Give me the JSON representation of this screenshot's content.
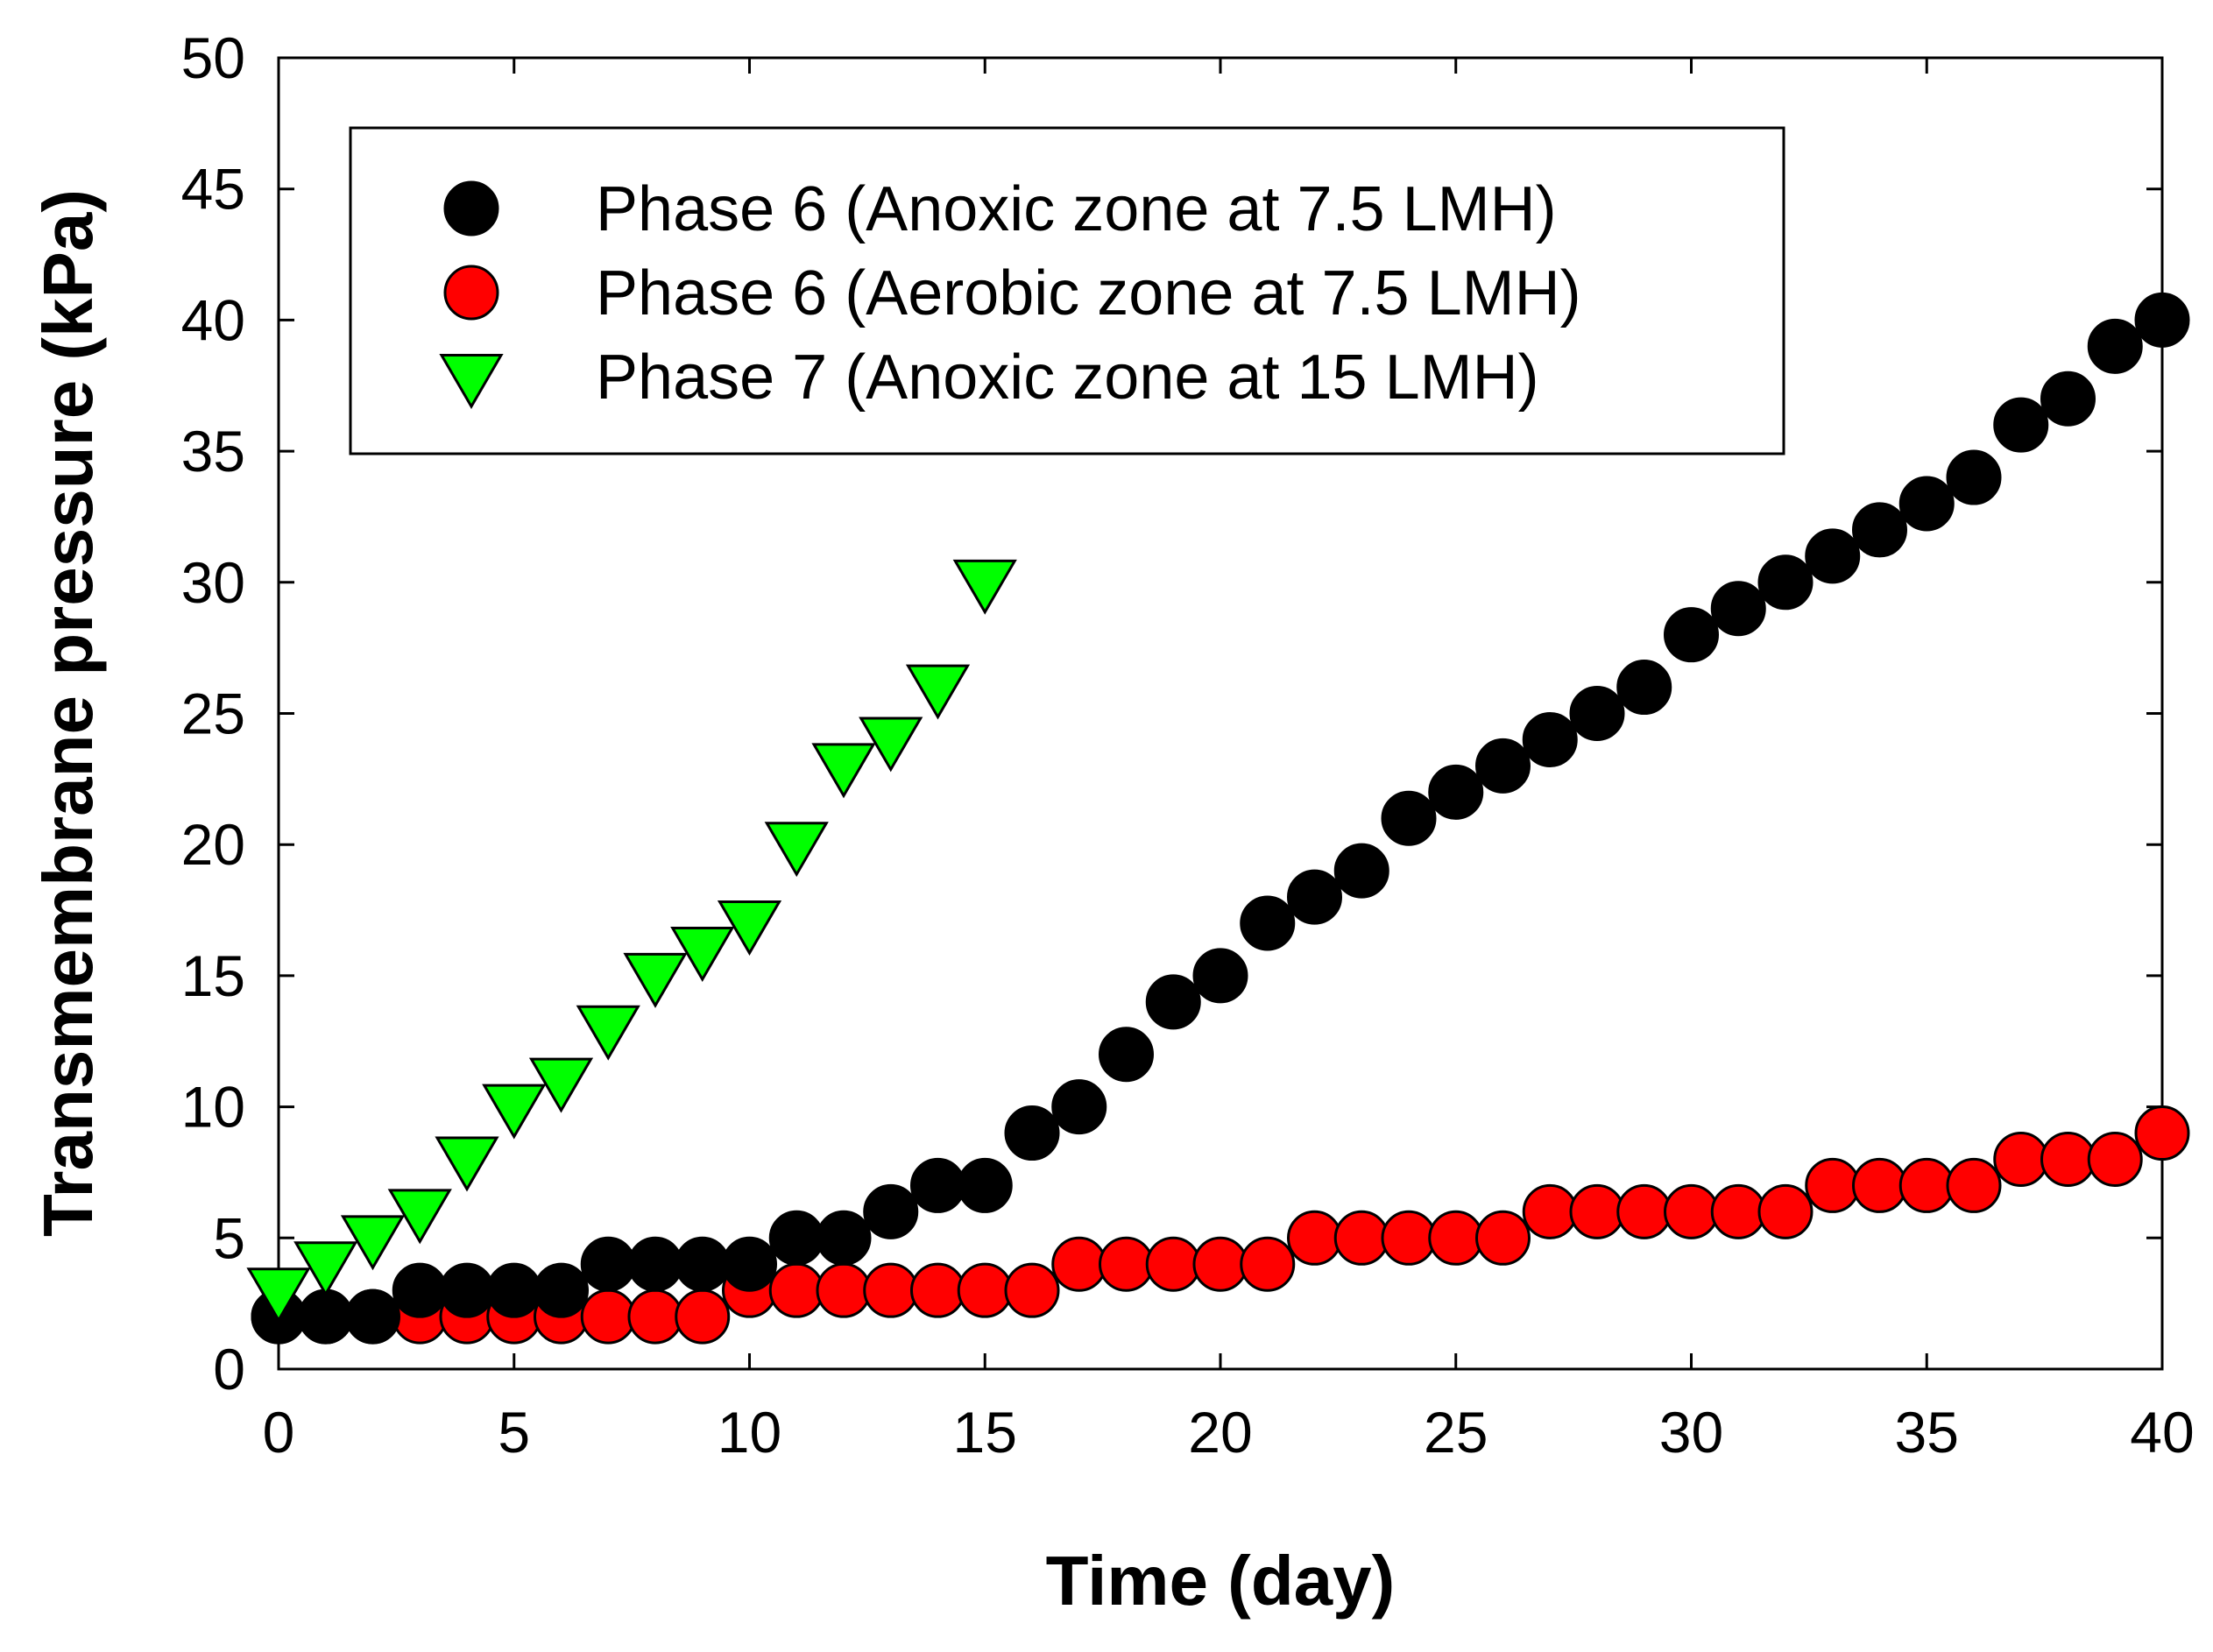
{
  "chart_data": {
    "type": "scatter",
    "title": "",
    "xlabel": "Time (day)",
    "ylabel": "Transmembrane pressure (kPa)",
    "xlim": [
      0,
      40
    ],
    "ylim": [
      0,
      50
    ],
    "xticks": [
      0,
      5,
      10,
      15,
      20,
      25,
      30,
      35,
      40
    ],
    "yticks": [
      0,
      5,
      10,
      15,
      20,
      25,
      30,
      35,
      40,
      45,
      50
    ],
    "grid": false,
    "legend_position": "top-left",
    "series": [
      {
        "name": "Phase 6 (Anoxic zone at 7.5 LMH)",
        "marker": "circle",
        "color": "#000000",
        "x": [
          0,
          1,
          2,
          3,
          4,
          5,
          6,
          7,
          8,
          9,
          10,
          11,
          12,
          13,
          14,
          15,
          16,
          17,
          18,
          19,
          20,
          21,
          22,
          23,
          24,
          25,
          26,
          27,
          28,
          29,
          30,
          31,
          32,
          33,
          34,
          35,
          36,
          37,
          38,
          39,
          40
        ],
        "y": [
          2,
          2,
          2,
          3,
          3,
          3,
          3,
          4,
          4,
          4,
          4,
          5,
          5,
          6,
          7,
          7,
          9,
          10,
          12,
          14,
          15,
          17,
          18,
          19,
          21,
          22,
          23,
          24,
          25,
          26,
          28,
          29,
          30,
          31,
          32,
          33,
          34,
          36,
          37,
          39,
          40
        ]
      },
      {
        "name": "Phase 6 (Aerobic zone at 7.5 LMH)",
        "marker": "circle",
        "color": "#ff0000",
        "x": [
          0,
          1,
          2,
          3,
          4,
          5,
          6,
          7,
          8,
          9,
          10,
          11,
          12,
          13,
          14,
          15,
          16,
          17,
          18,
          19,
          20,
          21,
          22,
          23,
          24,
          25,
          26,
          27,
          28,
          29,
          30,
          31,
          32,
          33,
          34,
          35,
          36,
          37,
          38,
          39,
          40
        ],
        "y": [
          2,
          2,
          2,
          2,
          2,
          2,
          2,
          2,
          2,
          2,
          3,
          3,
          3,
          3,
          3,
          3,
          3,
          4,
          4,
          4,
          4,
          4,
          5,
          5,
          5,
          5,
          5,
          6,
          6,
          6,
          6,
          6,
          6,
          7,
          7,
          7,
          7,
          8,
          8,
          8,
          9
        ]
      },
      {
        "name": "Phase 7 (Anoxic zone at 15 LMH)",
        "marker": "triangle-down",
        "color": "#00ff00",
        "x": [
          0,
          1,
          2,
          3,
          4,
          5,
          6,
          7,
          8,
          9,
          10,
          11,
          12,
          13,
          14,
          15
        ],
        "y": [
          3,
          4,
          5,
          6,
          8,
          10,
          11,
          13,
          15,
          16,
          17,
          20,
          23,
          24,
          26,
          30
        ]
      }
    ]
  }
}
